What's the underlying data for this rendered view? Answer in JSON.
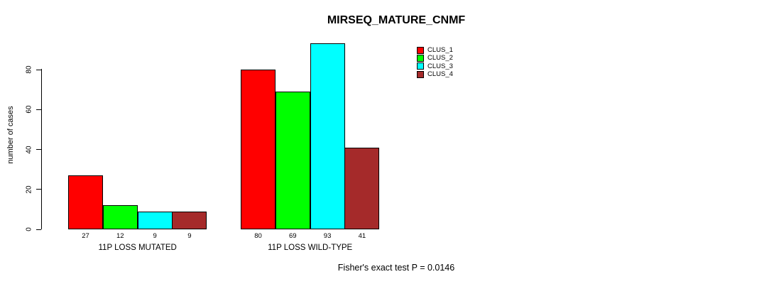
{
  "title": "MIRSEQ_MATURE_CNMF",
  "footer": {
    "text": "Fisher's exact test P = 0.0146"
  },
  "chart_data": {
    "type": "bar",
    "title": "MIRSEQ_MATURE_CNMF",
    "xlabel": "",
    "ylabel": "number of cases",
    "ylim": [
      0,
      80
    ],
    "yticks": [
      0,
      20,
      40,
      60,
      80
    ],
    "grid": false,
    "legend_position": "top-right-inside-plot",
    "categories": [
      "11P LOSS MUTATED",
      "11P LOSS WILD-TYPE"
    ],
    "series": [
      {
        "name": "CLUS_1",
        "color": "#ff0000",
        "values": [
          27,
          80
        ]
      },
      {
        "name": "CLUS_2",
        "color": "#00ff00",
        "values": [
          12,
          69
        ]
      },
      {
        "name": "CLUS_3",
        "color": "#00ffff",
        "values": [
          9,
          93
        ]
      },
      {
        "name": "CLUS_4",
        "color": "#a52a2a",
        "values": [
          9,
          41
        ]
      }
    ],
    "bar_value_labels": [
      [
        27,
        12,
        9,
        9
      ],
      [
        80,
        69,
        93,
        41
      ]
    ],
    "annotation": "Fisher's exact test P = 0.0146"
  }
}
